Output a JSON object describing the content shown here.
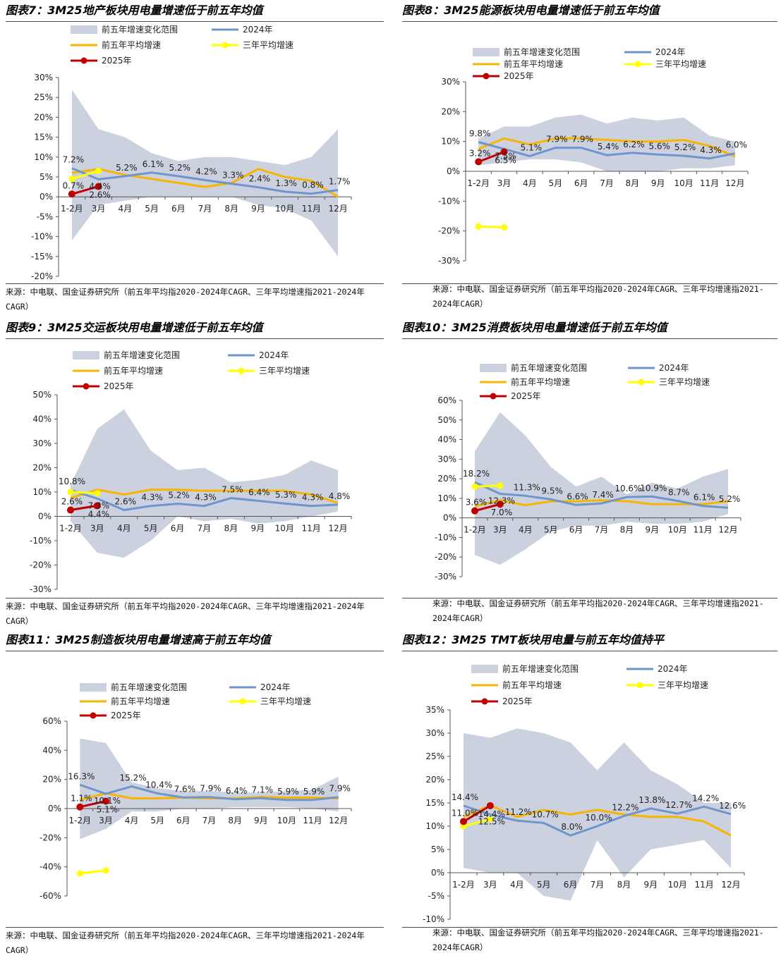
{
  "charts": [
    {
      "title": "图表7：3M25地产板块用电量增速低于前五年均值",
      "source": "来源：中电联、国金证券研究所（前五年平均指2020-2024年CAGR、三年平均增速指2021-2024年CAGR）"
    },
    {
      "title": "图表8：3M25能源板块用电量增速低于前五年均值",
      "source": "来源：中电联、国金证券研究所（前五年平均指2020-2024年CAGR、三年平均增速指2021-2024年CAGR）"
    },
    {
      "title": "图表9：3M25交运板块用电量增速低于前五年均值",
      "source": "来源：中电联、国金证券研究所（前五年平均指2020-2024年CAGR、三年平均增速指2021-2024年CAGR）"
    },
    {
      "title": "图表10：3M25消费板块用电量增速低于前五年均值",
      "source": "来源：中电联、国金证券研究所（前五年平均指2020-2024年CAGR、三年平均增速指2021-2024年CAGR）"
    },
    {
      "title": "图表11：3M25制造板块用电量增速高于前五年均值",
      "source": "来源：中电联、国金证券研究所（前五年平均指2020-2024年CAGR、三年平均增速指2021-2024年CAGR）"
    },
    {
      "title": "图表12：3M25 TMT板块用电量与前五年均值持平",
      "source": "来源：中电联、国金证券研究所（前五年平均指2020-2024年CAGR、三年平均增速指2021-2024年CAGR）"
    }
  ],
  "colors": {
    "band": "#cbd1df",
    "y2024": "#6e95cc",
    "avg5": "#f7b500",
    "avg3": "#ffff00",
    "y2025": "#c00000",
    "axis": "#555555"
  },
  "chart_data": [
    {
      "type": "line",
      "title": "图表7：3M25地产板块用电量增速低于前五年均值",
      "categories": [
        "1-2月",
        "3月",
        "4月",
        "5月",
        "6月",
        "7月",
        "8月",
        "9月",
        "10月",
        "11月",
        "12月"
      ],
      "ylim": [
        -20,
        30
      ],
      "yticks": [
        -20,
        -15,
        -10,
        -5,
        0,
        5,
        10,
        15,
        20,
        25,
        30
      ],
      "legend": {
        "band": "前五年增速变化范围",
        "y2024": "2024年",
        "avg5": "前五年平均增速",
        "avg3": "三年平均增速",
        "y2025": "2025年"
      },
      "band_upper": [
        27,
        17,
        15,
        11,
        9,
        10,
        10,
        9,
        8,
        10,
        17
      ],
      "band_lower": [
        -11,
        -2,
        -1,
        0,
        0,
        0,
        0,
        -2,
        -3,
        -6,
        -15
      ],
      "y2024": [
        7.2,
        4.4,
        5.2,
        6.1,
        5.2,
        4.2,
        3.3,
        2.4,
        1.3,
        0.8,
        1.7
      ],
      "avg5": [
        6,
        7,
        5.5,
        4.5,
        3.5,
        2.5,
        3.5,
        7,
        5,
        4,
        0
      ],
      "avg3": [
        4.5,
        6.5
      ],
      "y2025": [
        0.7,
        2.6
      ],
      "labels": {
        "y2024": [
          "7.2%",
          "4.4%",
          "5.2%",
          "6.1%",
          "5.2%",
          "4.2%",
          "3.3%",
          "2.4%",
          "1.3%",
          "0.8%",
          "1.7%"
        ],
        "y2025": [
          "0.7%",
          "2.6%"
        ]
      }
    },
    {
      "type": "line",
      "title": "图表8：3M25能源板块用电量增速低于前五年均值",
      "categories": [
        "1-2月",
        "3月",
        "4月",
        "5月",
        "6月",
        "7月",
        "8月",
        "9月",
        "10月",
        "11月",
        "12月"
      ],
      "ylim": [
        -30,
        30
      ],
      "yticks": [
        -30,
        -20,
        -10,
        0,
        10,
        20,
        30
      ],
      "legend": {
        "band": "前五年增速变化范围",
        "y2024": "2024年",
        "avg5": "前五年平均增速",
        "avg3": "三年平均增速",
        "y2025": "2025年"
      },
      "band_upper": [
        11,
        15,
        15,
        18,
        19,
        16,
        18,
        17,
        18,
        12,
        10
      ],
      "band_lower": [
        2,
        3,
        4,
        4,
        3,
        0,
        0,
        0,
        1,
        1,
        2
      ],
      "y2024": [
        9.8,
        7.5,
        5.1,
        7.9,
        7.9,
        5.4,
        6.2,
        5.6,
        5.2,
        4.3,
        6.0
      ],
      "avg5": [
        7.5,
        11,
        9,
        11,
        11,
        10.5,
        10,
        10,
        10.5,
        8.5,
        5
      ],
      "avg3": [
        -18.5,
        -18.8
      ],
      "y2025": [
        3.2,
        6.5
      ],
      "labels": {
        "y2024": [
          "9.8%",
          "7.5%",
          "5.1%",
          "7.9%",
          "7.9%",
          "5.4%",
          "6.2%",
          "5.6%",
          "5.2%",
          "4.3%",
          "6.0%"
        ],
        "y2025": [
          "3.2%",
          "6.5%"
        ]
      }
    },
    {
      "type": "line",
      "title": "图表9：3M25交运板块用电量增速低于前五年均值",
      "categories": [
        "1-2月",
        "3月",
        "4月",
        "5月",
        "6月",
        "7月",
        "8月",
        "9月",
        "10月",
        "11月",
        "12月"
      ],
      "ylim": [
        -30,
        50
      ],
      "yticks": [
        -30,
        -20,
        -10,
        0,
        10,
        20,
        30,
        40,
        50
      ],
      "legend": {
        "band": "前五年增速变化范围",
        "y2024": "2024年",
        "avg5": "前五年平均增速",
        "avg3": "三年平均增速",
        "y2025": "2025年"
      },
      "band_upper": [
        13,
        36,
        44,
        27,
        19,
        20,
        14,
        15,
        17,
        23,
        19
      ],
      "band_lower": [
        -2,
        -15,
        -17,
        -10,
        0,
        -2,
        -1,
        -3,
        -2,
        0,
        2
      ],
      "y2024": [
        10.8,
        7.3,
        2.6,
        4.3,
        5.2,
        4.3,
        7.5,
        6.4,
        5.3,
        4.3,
        4.8
      ],
      "avg5": [
        7.5,
        11,
        9,
        11,
        11,
        10.5,
        10.5,
        10.5,
        10.5,
        9,
        5.5
      ],
      "avg3": [
        10,
        9.5
      ],
      "y2025": [
        2.6,
        4.4
      ],
      "labels": {
        "y2024": [
          "10.8%",
          "7.3%",
          "2.6%",
          "4.3%",
          "5.2%",
          "4.3%",
          "7.5%",
          "6.4%",
          "5.3%",
          "4.3%",
          "4.8%"
        ],
        "y2025": [
          "2.6%",
          "4.4%"
        ]
      }
    },
    {
      "type": "line",
      "title": "图表10：3M25消费板块用电量增速低于前五年均值",
      "categories": [
        "1-2月",
        "3月",
        "4月",
        "5月",
        "6月",
        "7月",
        "8月",
        "9月",
        "10月",
        "11月",
        "12月"
      ],
      "ylim": [
        -30,
        60
      ],
      "yticks": [
        -30,
        -20,
        -10,
        0,
        10,
        20,
        30,
        40,
        50,
        60
      ],
      "legend": {
        "band": "前五年增速变化范围",
        "y2024": "2024年",
        "avg5": "前五年平均增速",
        "avg3": "三年平均增速",
        "y2025": "2025年"
      },
      "band_upper": [
        34,
        54,
        42,
        26,
        16,
        21,
        12,
        18,
        15,
        21,
        25
      ],
      "band_lower": [
        -19,
        -24,
        -16,
        -7,
        -4,
        -4,
        -2,
        -3,
        -3,
        -2,
        2
      ],
      "y2024": [
        18.2,
        12.3,
        11.3,
        9.5,
        6.6,
        7.4,
        10.6,
        10.9,
        8.7,
        6.1,
        5.2
      ],
      "avg5": [
        6,
        9,
        6.5,
        8.5,
        8.5,
        9,
        8.5,
        7,
        7,
        7,
        8.5
      ],
      "avg3": [
        16,
        16.5
      ],
      "y2025": [
        3.6,
        7.0
      ],
      "labels": {
        "y2024": [
          "18.2%",
          "12.3%",
          "11.3%",
          "9.5%",
          "6.6%",
          "7.4%",
          "10.6%",
          "10.9%",
          "8.7%",
          "6.1%",
          "5.2%"
        ],
        "y2025": [
          "3.6%",
          "7.0%"
        ]
      }
    },
    {
      "type": "line",
      "title": "图表11：3M25制造板块用电量增速高于前五年均值",
      "categories": [
        "1-2月",
        "3月",
        "4月",
        "5月",
        "6月",
        "7月",
        "8月",
        "9月",
        "10月",
        "11月",
        "12月"
      ],
      "ylim": [
        -60,
        60
      ],
      "yticks": [
        -60,
        -40,
        -20,
        0,
        20,
        40,
        60
      ],
      "legend": {
        "band": "前五年增速变化范围",
        "y2024": "2024年",
        "avg5": "前五年平均增速",
        "avg3": "三年平均增速",
        "y2025": "2025年"
      },
      "band_upper": [
        48,
        45,
        18,
        14,
        12,
        12,
        11,
        11,
        12,
        13,
        22
      ],
      "band_lower": [
        -21,
        -14,
        -2,
        -2,
        0,
        0,
        1,
        1,
        1,
        0,
        -2
      ],
      "y2024": [
        16.3,
        10.1,
        15.2,
        10.4,
        7.6,
        7.9,
        6.4,
        7.1,
        5.9,
        5.9,
        7.9
      ],
      "avg5": [
        6,
        10.5,
        7,
        7,
        7.5,
        7,
        7,
        8,
        7.5,
        7.5,
        7
      ],
      "avg3": [
        -44.5,
        -42.5
      ],
      "y2025": [
        1.1,
        5.1
      ],
      "labels": {
        "y2024": [
          "16.3%",
          "10.1%",
          "15.2%",
          "10.4%",
          "7.6%",
          "7.9%",
          "6.4%",
          "7.1%",
          "5.9%",
          "5.9%",
          "7.9%"
        ],
        "y2025": [
          "1.1%",
          "5.1%"
        ]
      }
    },
    {
      "type": "line",
      "title": "图表12：3M25 TMT板块用电量与前五年均值持平",
      "categories": [
        "1-2月",
        "3月",
        "4月",
        "5月",
        "6月",
        "7月",
        "8月",
        "9月",
        "10月",
        "11月",
        "12月"
      ],
      "ylim": [
        -10,
        35
      ],
      "yticks": [
        -10,
        -5,
        0,
        5,
        10,
        15,
        20,
        25,
        30,
        35
      ],
      "legend": {
        "band": "前五年增速变化范围",
        "y2024": "2024年",
        "avg5": "前五年平均增速",
        "avg3": "三年平均增速",
        "y2025": "2025年"
      },
      "band_upper": [
        30,
        29,
        31,
        30,
        28,
        22,
        28,
        22,
        19,
        15,
        15
      ],
      "band_lower": [
        1,
        0,
        0,
        -5,
        -6,
        7,
        -1,
        5,
        6,
        7,
        1
      ],
      "y2024": [
        14.4,
        12.5,
        11.2,
        10.7,
        8.0,
        10.0,
        12.2,
        13.8,
        12.7,
        14.2,
        12.6
      ],
      "avg5": [
        12,
        14.5,
        12,
        13.5,
        12.5,
        13.5,
        12.5,
        12,
        12,
        11,
        8
      ],
      "avg3": [
        10,
        11.5
      ],
      "y2025": [
        11.0,
        14.4
      ],
      "labels": {
        "y2024": [
          "14.4%",
          "12.5%",
          "11.2%",
          "10.7%",
          "8.0%",
          "10.0%",
          "12.2%",
          "13.8%",
          "12.7%",
          "14.2%",
          "12.6%"
        ],
        "y2025": [
          "11.0%",
          "14.4%"
        ]
      }
    }
  ]
}
